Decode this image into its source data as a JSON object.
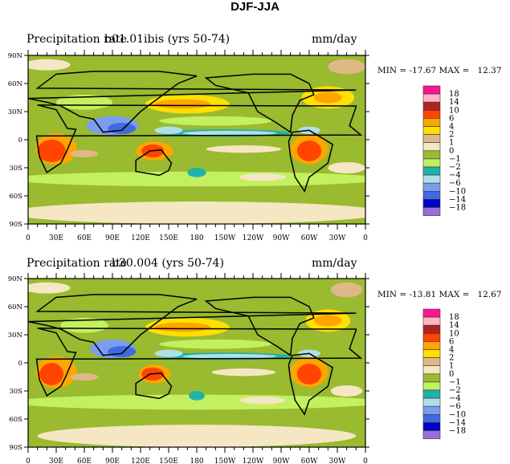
{
  "figure_title": "DJF-JJA",
  "panels": [
    {
      "left_label": "Precipitation rate",
      "center_label": "b01.01ibis (yrs 50-74)",
      "right_label": "mm/day",
      "min_max": "MIN = -17.67 MAX =   12.37"
    },
    {
      "left_label": "Precipitation rate",
      "center_label": "b30.004 (yrs 50-74)",
      "right_label": "mm/day",
      "min_max": "MIN = -13.81 MAX =   12.67"
    }
  ],
  "lat_ticks": [
    "90N",
    "60N",
    "30N",
    "0",
    "30S",
    "60S",
    "90S"
  ],
  "lon_ticks": [
    "0",
    "30E",
    "60E",
    "90E",
    "120E",
    "150E",
    "180",
    "150W",
    "120W",
    "90W",
    "60W",
    "30W",
    "0"
  ],
  "colorbar": {
    "labels": [
      "18",
      "14",
      "10",
      "6",
      "4",
      "2",
      "1",
      "0",
      "−1",
      "−2",
      "−4",
      "−6",
      "−10",
      "−14",
      "−18"
    ],
    "colors": [
      "#ff1493",
      "#ffb6c1",
      "#b22222",
      "#ff4500",
      "#ffa500",
      "#ffe000",
      "#deb887",
      "#f5e6c4",
      "#9aba2f",
      "#c2f060",
      "#20b2aa",
      "#b0e0e6",
      "#7b9cf0",
      "#4169e1",
      "#0000cd",
      "#9370db"
    ]
  }
}
